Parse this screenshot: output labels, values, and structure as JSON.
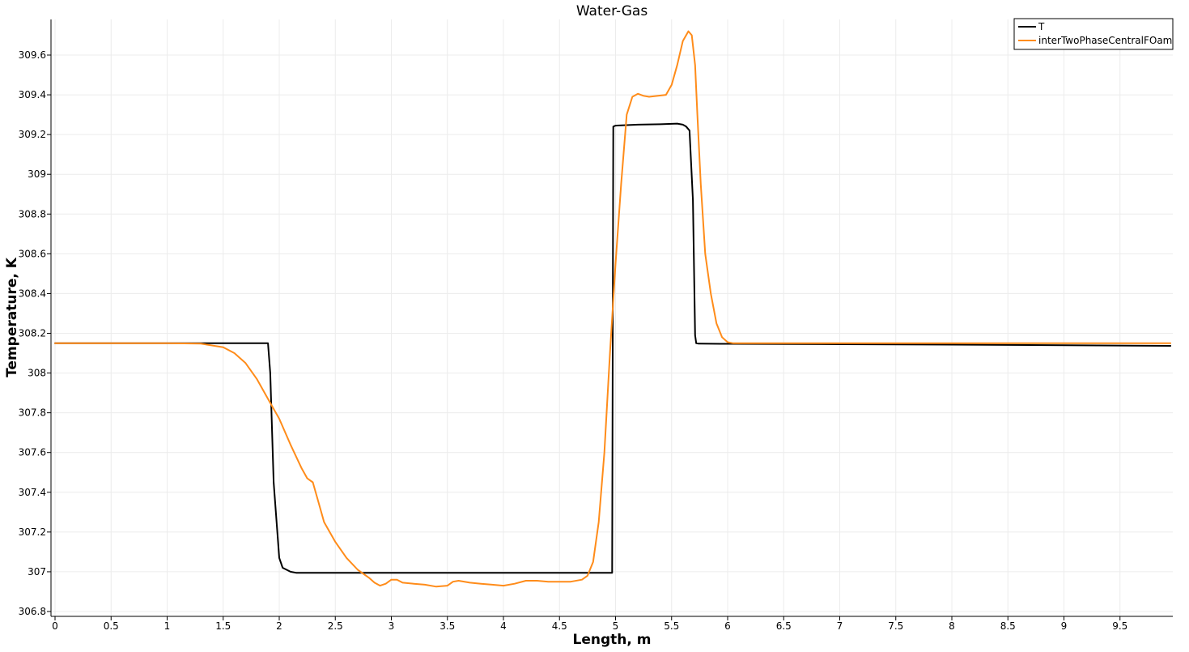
{
  "chart_data": {
    "type": "line",
    "title": "Water-Gas",
    "xlabel": "Length, m",
    "ylabel": "Temperature, K",
    "xlim": [
      0,
      9.95
    ],
    "ylim": [
      306.8,
      309.8
    ],
    "xticks": [
      "0",
      "0.5",
      "1",
      "1.5",
      "2",
      "2.5",
      "3",
      "3.5",
      "4",
      "4.5",
      "5",
      "5.5",
      "6",
      "6.5",
      "7",
      "7.5",
      "8",
      "8.5",
      "9",
      "9.5"
    ],
    "yticks": [
      "306.8",
      "307",
      "307.2",
      "307.4",
      "307.6",
      "307.8",
      "308",
      "308.2",
      "308.4",
      "308.6",
      "308.8",
      "309",
      "309.2",
      "309.4",
      "309.6"
    ],
    "grid": true,
    "legend_position": "top-right",
    "series": [
      {
        "name": "T",
        "color": "#000000",
        "x": [
          0,
          1.0,
          1.9,
          1.92,
          1.95,
          2.0,
          2.03,
          2.1,
          2.15,
          2.5,
          3.0,
          4.0,
          4.8,
          4.97,
          4.98,
          5.0,
          5.2,
          5.4,
          5.55,
          5.6,
          5.63,
          5.66,
          5.69,
          5.71,
          5.72,
          5.74,
          6.0,
          7.0,
          8.0,
          9.0,
          9.95
        ],
        "y": [
          308.15,
          308.15,
          308.15,
          308.0,
          307.45,
          307.07,
          307.02,
          307.0,
          306.995,
          306.995,
          306.995,
          306.995,
          306.995,
          306.995,
          309.24,
          309.245,
          309.25,
          309.252,
          309.255,
          309.25,
          309.24,
          309.22,
          308.87,
          308.19,
          308.15,
          308.148,
          308.147,
          308.145,
          308.143,
          308.14,
          308.137
        ]
      },
      {
        "name": "interTwoPhaseCentralFOam",
        "color": "#ff8c1a",
        "x": [
          0,
          1.0,
          1.3,
          1.5,
          1.6,
          1.7,
          1.8,
          1.9,
          2.0,
          2.1,
          2.2,
          2.25,
          2.3,
          2.35,
          2.4,
          2.5,
          2.6,
          2.7,
          2.8,
          2.85,
          2.9,
          2.95,
          3.0,
          3.05,
          3.1,
          3.2,
          3.3,
          3.4,
          3.5,
          3.55,
          3.6,
          3.7,
          3.8,
          3.9,
          4.0,
          4.1,
          4.2,
          4.3,
          4.4,
          4.6,
          4.7,
          4.75,
          4.8,
          4.85,
          4.9,
          4.95,
          5.0,
          5.05,
          5.1,
          5.15,
          5.2,
          5.25,
          5.3,
          5.45,
          5.5,
          5.55,
          5.6,
          5.65,
          5.68,
          5.71,
          5.73,
          5.76,
          5.8,
          5.85,
          5.9,
          5.95,
          6.0,
          6.05,
          6.1,
          6.2,
          7.0,
          8.0,
          9.0,
          9.95
        ],
        "y": [
          308.15,
          308.15,
          308.148,
          308.13,
          308.1,
          308.05,
          307.97,
          307.87,
          307.77,
          307.64,
          307.52,
          307.47,
          307.45,
          307.35,
          307.25,
          307.15,
          307.07,
          307.01,
          306.97,
          306.945,
          306.93,
          306.94,
          306.96,
          306.96,
          306.945,
          306.94,
          306.935,
          306.925,
          306.93,
          306.95,
          306.955,
          306.945,
          306.94,
          306.935,
          306.93,
          306.94,
          306.955,
          306.955,
          306.95,
          306.95,
          306.96,
          306.98,
          307.05,
          307.25,
          307.6,
          308.1,
          308.55,
          308.95,
          309.3,
          309.39,
          309.405,
          309.395,
          309.39,
          309.4,
          309.45,
          309.55,
          309.67,
          309.72,
          309.7,
          309.55,
          309.3,
          308.95,
          308.6,
          308.4,
          308.25,
          308.18,
          308.155,
          308.15,
          308.15,
          308.15,
          308.15,
          308.15,
          308.15,
          308.15
        ]
      }
    ]
  }
}
